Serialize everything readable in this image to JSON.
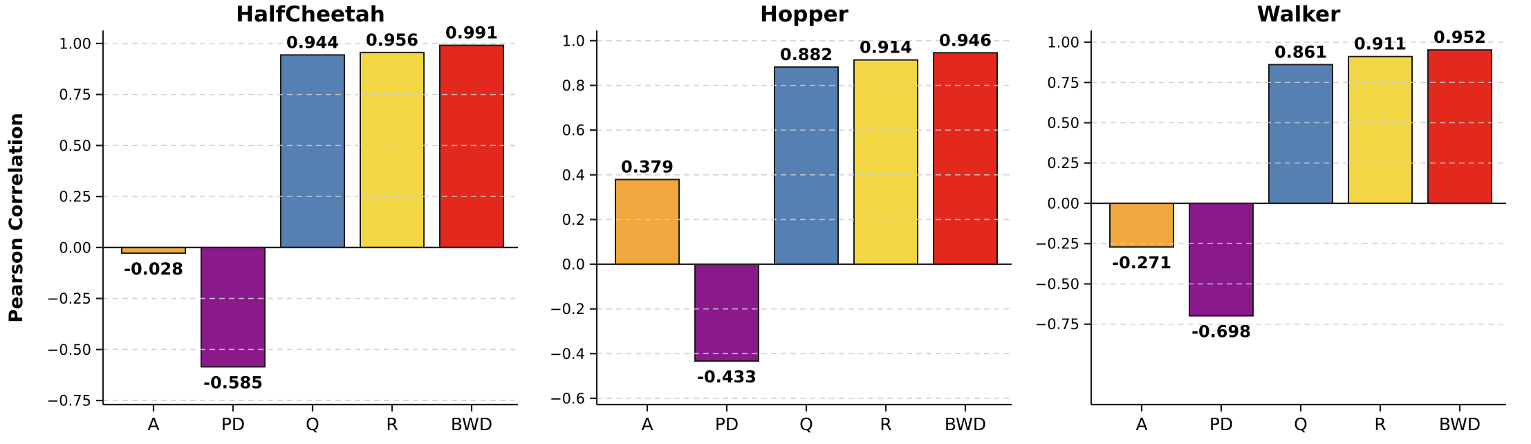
{
  "figure": {
    "ylabel": "Pearson Correlation"
  },
  "colors": {
    "A": "#EFA73E",
    "PD": "#8A1A8C",
    "Q": "#567FB2",
    "R": "#F2D644",
    "BWD": "#E3281E",
    "bar_edge": "#1b1b1b",
    "grid": "#cccccc",
    "zero_line": "#1b1b1b",
    "spine": "#1b1b1b",
    "text": "#000000"
  },
  "chart_data": [
    {
      "type": "bar",
      "title": "HalfCheetah",
      "xlabel": "",
      "ylabel": "Pearson Correlation",
      "categories": [
        "A",
        "PD",
        "Q",
        "R",
        "BWD"
      ],
      "values": [
        -0.028,
        -0.585,
        0.944,
        0.956,
        0.991
      ],
      "value_labels": [
        "-0.028",
        "-0.585",
        "0.944",
        "0.956",
        "0.991"
      ],
      "bar_color_keys": [
        "A",
        "PD",
        "Q",
        "R",
        "BWD"
      ],
      "ylim": [
        -0.77,
        1.064
      ],
      "yticks": [
        {
          "v": 1.0,
          "label": "1.00"
        },
        {
          "v": 0.75,
          "label": "0.75"
        },
        {
          "v": 0.5,
          "label": "0.50"
        },
        {
          "v": 0.25,
          "label": "0.25"
        },
        {
          "v": 0.0,
          "label": "0.00"
        },
        {
          "v": -0.25,
          "label": "−0.25"
        },
        {
          "v": -0.5,
          "label": "−0.50"
        },
        {
          "v": -0.75,
          "label": "−0.75"
        }
      ],
      "grid": true,
      "legend": null
    },
    {
      "type": "bar",
      "title": "Hopper",
      "xlabel": "",
      "ylabel": "",
      "categories": [
        "A",
        "PD",
        "Q",
        "R",
        "BWD"
      ],
      "values": [
        0.379,
        -0.433,
        0.882,
        0.914,
        0.946
      ],
      "value_labels": [
        "0.379",
        "-0.433",
        "0.882",
        "0.914",
        "0.946"
      ],
      "bar_color_keys": [
        "A",
        "PD",
        "Q",
        "R",
        "BWD"
      ],
      "ylim": [
        -0.628,
        1.046
      ],
      "yticks": [
        {
          "v": 1.0,
          "label": "1.0"
        },
        {
          "v": 0.8,
          "label": "0.8"
        },
        {
          "v": 0.6,
          "label": "0.6"
        },
        {
          "v": 0.4,
          "label": "0.4"
        },
        {
          "v": 0.2,
          "label": "0.2"
        },
        {
          "v": 0.0,
          "label": "0.0"
        },
        {
          "v": -0.2,
          "label": "−0.2"
        },
        {
          "v": -0.4,
          "label": "−0.4"
        },
        {
          "v": -0.6,
          "label": "−0.6"
        }
      ],
      "grid": true,
      "legend": null
    },
    {
      "type": "bar",
      "title": "Walker",
      "xlabel": "",
      "ylabel": "",
      "categories": [
        "A",
        "PD",
        "Q",
        "R",
        "BWD"
      ],
      "values": [
        -0.271,
        -0.698,
        0.861,
        0.911,
        0.952
      ],
      "value_labels": [
        "-0.271",
        "-0.698",
        "0.861",
        "0.911",
        "0.952"
      ],
      "bar_color_keys": [
        "A",
        "PD",
        "Q",
        "R",
        "BWD"
      ],
      "ylim": [
        -1.249,
        1.073
      ],
      "yticks": [
        {
          "v": 1.0,
          "label": "1.00"
        },
        {
          "v": 0.75,
          "label": "0.75"
        },
        {
          "v": 0.5,
          "label": "0.50"
        },
        {
          "v": 0.25,
          "label": "0.25"
        },
        {
          "v": 0.0,
          "label": "0.00"
        },
        {
          "v": -0.25,
          "label": "−0.25"
        },
        {
          "v": -0.5,
          "label": "−0.50"
        },
        {
          "v": -0.75,
          "label": "−0.75"
        }
      ],
      "grid": true,
      "legend": null
    }
  ]
}
